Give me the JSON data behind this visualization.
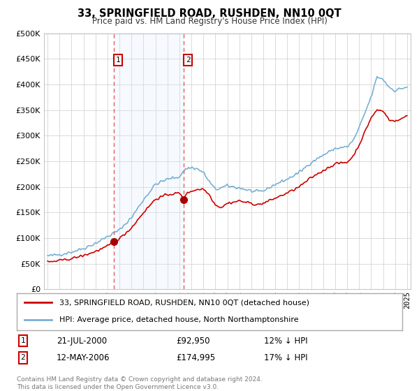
{
  "title": "33, SPRINGFIELD ROAD, RUSHDEN, NN10 0QT",
  "subtitle": "Price paid vs. HM Land Registry's House Price Index (HPI)",
  "legend_line1": "33, SPRINGFIELD ROAD, RUSHDEN, NN10 0QT (detached house)",
  "legend_line2": "HPI: Average price, detached house, North Northamptonshire",
  "transaction1_date": "21-JUL-2000",
  "transaction1_price": "£92,950",
  "transaction1_hpi": "12% ↓ HPI",
  "transaction1_year": 2000.55,
  "transaction1_value": 92950,
  "transaction2_date": "12-MAY-2006",
  "transaction2_price": "£174,995",
  "transaction2_hpi": "17% ↓ HPI",
  "transaction2_year": 2006.37,
  "transaction2_value": 174995,
  "hpi_color": "#7ab0d4",
  "price_color": "#cc0000",
  "vline_color": "#e06060",
  "shade_color": "#ddeeff",
  "marker_color": "#aa0000",
  "background_color": "#ffffff",
  "grid_color": "#cccccc",
  "footer_text": "Contains HM Land Registry data © Crown copyright and database right 2024.\nThis data is licensed under the Open Government Licence v3.0.",
  "ylim": [
    0,
    500000
  ],
  "yticks": [
    0,
    50000,
    100000,
    150000,
    200000,
    250000,
    300000,
    350000,
    400000,
    450000,
    500000
  ],
  "xmin": 1994.7,
  "xmax": 2025.3
}
